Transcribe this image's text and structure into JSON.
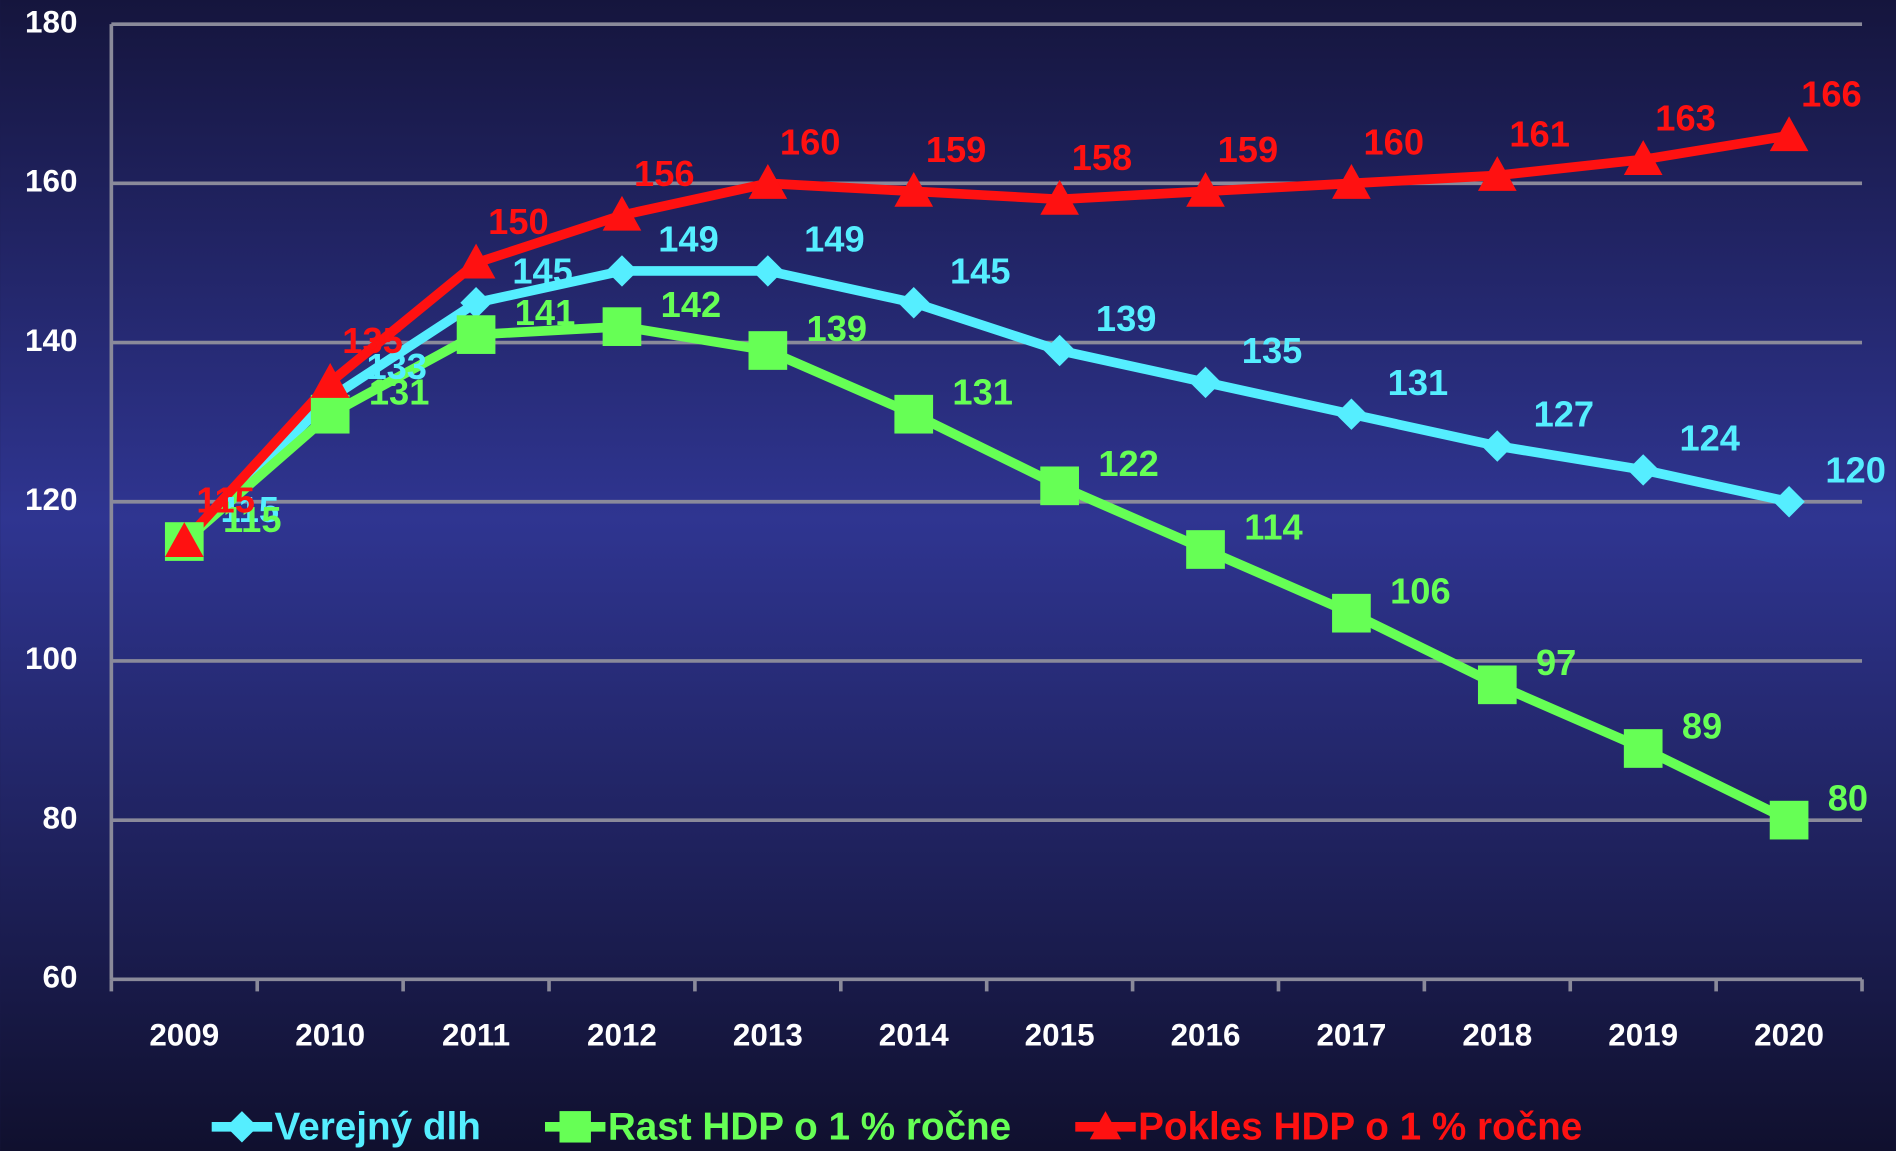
{
  "chart_data": {
    "type": "line",
    "categories": [
      "2009",
      "2010",
      "2011",
      "2012",
      "2013",
      "2014",
      "2015",
      "2016",
      "2017",
      "2018",
      "2019",
      "2020"
    ],
    "series": [
      {
        "name": "Verejný dlh",
        "color": "#55eeff",
        "marker": "diamond",
        "values": [
          115,
          133,
          145,
          149,
          149,
          145,
          139,
          135,
          131,
          127,
          124,
          120
        ]
      },
      {
        "name": "Rast HDP o 1 % ročne",
        "color": "#66ff55",
        "marker": "square",
        "values": [
          115,
          131,
          141,
          142,
          139,
          131,
          122,
          114,
          106,
          97,
          89,
          80
        ]
      },
      {
        "name": "Pokles HDP o 1 % ročne",
        "color": "#ff1111",
        "marker": "triangle",
        "values": [
          115,
          135,
          150,
          156,
          160,
          159,
          158,
          159,
          160,
          161,
          163,
          166
        ]
      }
    ],
    "ylim": [
      60,
      180
    ],
    "yticks": [
      60,
      80,
      100,
      120,
      140,
      160,
      180
    ],
    "grid": true,
    "legend": "bottom"
  }
}
